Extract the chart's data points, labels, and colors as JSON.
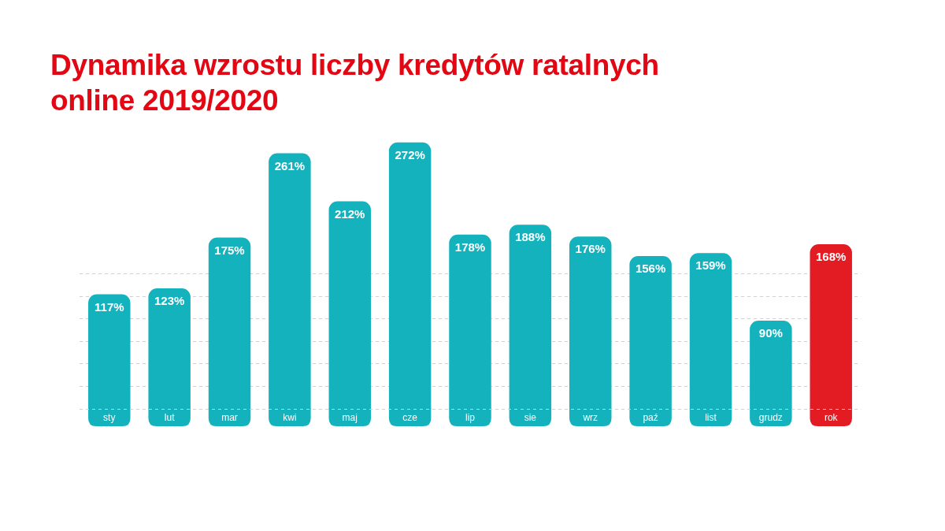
{
  "chart_data": {
    "type": "bar",
    "title": "Dynamika wzrostu liczby kredytów ratalnych online 2019/2020",
    "categories": [
      "sty",
      "lut",
      "mar",
      "kwi",
      "maj",
      "cze",
      "lip",
      "sie",
      "wrz",
      "paź",
      "list",
      "grudz",
      "rok"
    ],
    "values": [
      117,
      123,
      175,
      261,
      212,
      272,
      178,
      188,
      176,
      156,
      159,
      90,
      168
    ],
    "value_labels": [
      "117%",
      "123%",
      "175%",
      "261%",
      "212%",
      "272%",
      "178%",
      "188%",
      "176%",
      "156%",
      "159%",
      "90%",
      "168%"
    ],
    "colors": [
      "#13b2bd",
      "#13b2bd",
      "#13b2bd",
      "#13b2bd",
      "#13b2bd",
      "#13b2bd",
      "#13b2bd",
      "#13b2bd",
      "#13b2bd",
      "#13b2bd",
      "#13b2bd",
      "#13b2bd",
      "#e31b23"
    ],
    "yticks": [
      {
        "value": 0,
        "label": null
      },
      {
        "value": 23,
        "label": null
      },
      {
        "value": 46,
        "label": null
      },
      {
        "value": 69,
        "label": null
      },
      {
        "value": 92,
        "label": null
      },
      {
        "value": 115,
        "label": null
      },
      {
        "value": 138,
        "label": null
      }
    ],
    "grid": "y"
  }
}
